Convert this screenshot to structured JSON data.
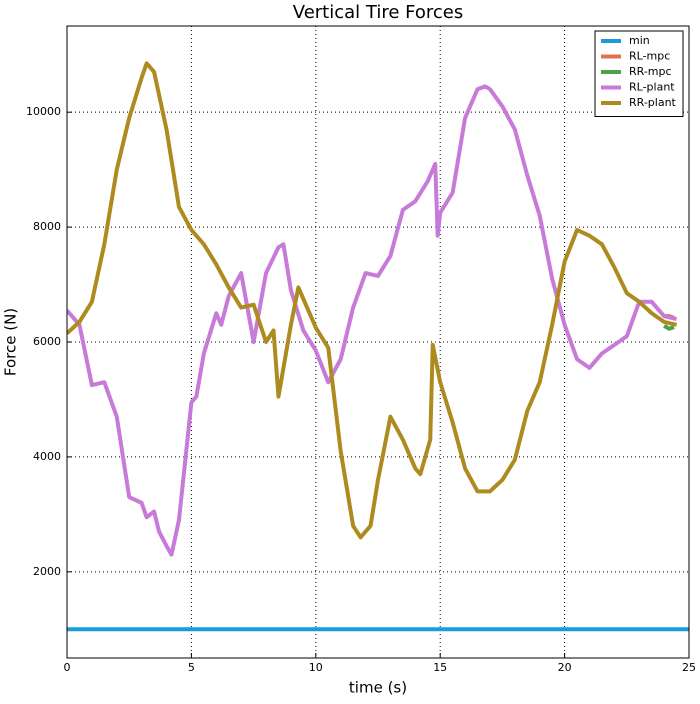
{
  "chart_data": {
    "type": "line",
    "title": "Vertical Tire Forces",
    "x_label": "time (s)",
    "y_label": "Force (N)",
    "xlim": [
      0,
      25
    ],
    "xticks": [
      0,
      5,
      10,
      15,
      20,
      25
    ],
    "ylim": [
      500,
      11500
    ],
    "yticks": [
      2000,
      4000,
      6000,
      8000,
      10000
    ],
    "grid": true,
    "legend": "upper-right",
    "series": [
      {
        "name": "min",
        "color": "#1a9bdc",
        "x": [
          0,
          25
        ],
        "values": [
          1000,
          1000
        ]
      },
      {
        "name": "RL-mpc",
        "color": "#e2704b",
        "x": [
          24,
          24.2,
          24.4
        ],
        "values": [
          6450,
          6450,
          6420
        ]
      },
      {
        "name": "RR-mpc",
        "color": "#4aa54a",
        "x": [
          24,
          24.2,
          24.4
        ],
        "values": [
          6280,
          6230,
          6260
        ]
      },
      {
        "name": "RL-plant",
        "color": "#c77ad8",
        "x": [
          0,
          0.5,
          1,
          1.5,
          2,
          2.5,
          3,
          3.2,
          3.5,
          3.7,
          4,
          4.2,
          4.5,
          5,
          5.2,
          5.5,
          6,
          6.2,
          6.5,
          7,
          7.5,
          8,
          8.5,
          8.7,
          9,
          9.5,
          10,
          10.5,
          11,
          11.5,
          12,
          12.5,
          13,
          13.5,
          14,
          14.5,
          14.8,
          14.9,
          15,
          15.5,
          16,
          16.5,
          16.8,
          17,
          17.5,
          18,
          18.5,
          19,
          19.5,
          20,
          20.5,
          21,
          21.5,
          22,
          22.5,
          23,
          23.5,
          24,
          24.5
        ],
        "values": [
          6550,
          6300,
          5250,
          5300,
          4700,
          3300,
          3200,
          2950,
          3050,
          2700,
          2450,
          2300,
          2900,
          4950,
          5050,
          5800,
          6500,
          6300,
          6800,
          7200,
          6000,
          7200,
          7650,
          7700,
          6900,
          6200,
          5850,
          5300,
          5700,
          6600,
          7200,
          7150,
          7500,
          8300,
          8450,
          8800,
          9100,
          7850,
          8250,
          8600,
          9900,
          10400,
          10450,
          10400,
          10100,
          9700,
          8900,
          8200,
          7100,
          6300,
          5700,
          5550,
          5800,
          5950,
          6100,
          6700,
          6700,
          6450,
          6400
        ]
      },
      {
        "name": "RR-plant",
        "color": "#ad8b1f",
        "x": [
          0,
          0.5,
          1,
          1.5,
          2,
          2.5,
          3,
          3.2,
          3.5,
          4,
          4.5,
          5,
          5.5,
          6,
          6.5,
          7,
          7.5,
          8,
          8.3,
          8.5,
          9,
          9.3,
          10,
          10.5,
          11,
          11.5,
          11.8,
          12.2,
          12.5,
          13,
          13.5,
          14,
          14.2,
          14.6,
          14.7,
          15,
          15.5,
          16,
          16.5,
          17,
          17.5,
          18,
          18.5,
          19,
          19.5,
          20,
          20.5,
          21,
          21.5,
          22,
          22.5,
          23,
          23.5,
          24,
          24.5
        ],
        "values": [
          6150,
          6350,
          6700,
          7700,
          9000,
          9900,
          10600,
          10850,
          10700,
          9700,
          8350,
          7950,
          7700,
          7350,
          6950,
          6600,
          6650,
          6000,
          6200,
          5050,
          6300,
          6950,
          6250,
          5900,
          4100,
          2800,
          2600,
          2800,
          3600,
          4700,
          4300,
          3800,
          3700,
          4300,
          5950,
          5300,
          4600,
          3800,
          3400,
          3400,
          3600,
          3950,
          4800,
          5300,
          6300,
          7400,
          7950,
          7850,
          7700,
          7300,
          6850,
          6700,
          6500,
          6350,
          6300
        ]
      }
    ]
  }
}
